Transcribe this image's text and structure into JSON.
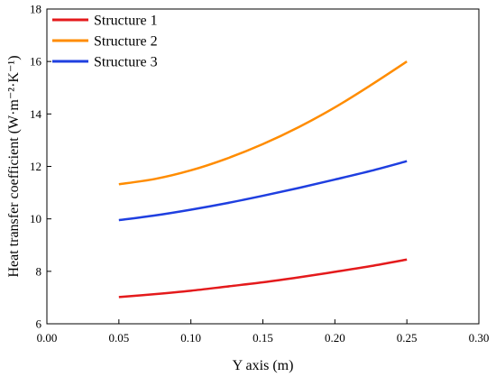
{
  "chart_data": {
    "type": "line",
    "title": "",
    "xlabel": "Y axis (m)",
    "ylabel": "Heat transfer coefficient (W·m⁻²·K⁻¹)",
    "xlim": [
      0.0,
      0.3
    ],
    "ylim": [
      6,
      18
    ],
    "xticks": [
      0.0,
      0.05,
      0.1,
      0.15,
      0.2,
      0.25,
      0.3
    ],
    "xtick_labels": [
      "0.00",
      "0.05",
      "0.10",
      "0.15",
      "0.20",
      "0.25",
      "0.30"
    ],
    "yticks": [
      6,
      8,
      10,
      12,
      14,
      16,
      18
    ],
    "ytick_labels": [
      "6",
      "8",
      "10",
      "12",
      "14",
      "16",
      "18"
    ],
    "grid": false,
    "legend_position": "top-left",
    "series": [
      {
        "name": "Structure 1",
        "color": "#e41a1c",
        "x": [
          0.05,
          0.075,
          0.1,
          0.125,
          0.15,
          0.175,
          0.2,
          0.225,
          0.25
        ],
        "y": [
          7.02,
          7.13,
          7.26,
          7.42,
          7.58,
          7.77,
          7.98,
          8.2,
          8.45
        ]
      },
      {
        "name": "Structure 2",
        "color": "#ff8c00",
        "x": [
          0.05,
          0.075,
          0.1,
          0.125,
          0.15,
          0.175,
          0.2,
          0.225,
          0.25
        ],
        "y": [
          11.32,
          11.52,
          11.85,
          12.3,
          12.85,
          13.5,
          14.25,
          15.1,
          16.0
        ]
      },
      {
        "name": "Structure 3",
        "color": "#1f3fe0",
        "x": [
          0.05,
          0.075,
          0.1,
          0.125,
          0.15,
          0.175,
          0.2,
          0.225,
          0.25
        ],
        "y": [
          9.95,
          10.13,
          10.35,
          10.6,
          10.88,
          11.18,
          11.5,
          11.83,
          12.2
        ]
      }
    ]
  }
}
